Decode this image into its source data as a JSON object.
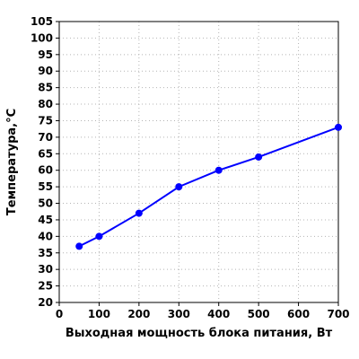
{
  "chart_data": {
    "type": "line",
    "title": "",
    "xlabel": "Выходная мощность блока питания, Вт",
    "ylabel": "Температура,°С",
    "xlim": [
      0,
      700
    ],
    "ylim": [
      20,
      105
    ],
    "xticks": [
      0,
      100,
      200,
      300,
      400,
      500,
      600,
      700
    ],
    "yticks": [
      20,
      25,
      30,
      35,
      40,
      45,
      50,
      55,
      60,
      65,
      70,
      75,
      80,
      85,
      90,
      95,
      100,
      105
    ],
    "grid": true,
    "series": [
      {
        "color": "#0000ff",
        "marker": "circle",
        "x": [
          50,
          100,
          200,
          300,
          400,
          500,
          700
        ],
        "y": [
          37,
          40,
          47,
          55,
          60,
          64,
          73
        ]
      }
    ]
  }
}
